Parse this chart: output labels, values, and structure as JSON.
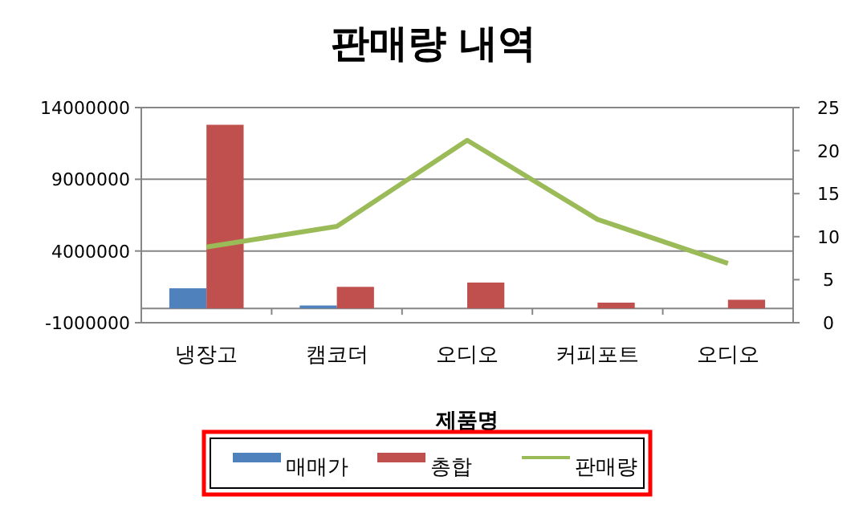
{
  "chart_data": {
    "type": "bar",
    "title": "판매량 내역",
    "xlabel": "제품명",
    "categories": [
      "냉장고",
      "캠코더",
      "오디오",
      "커피포트",
      "오디오"
    ],
    "series": [
      {
        "name": "매매가",
        "color": "#4f81bd",
        "values": [
          1400000,
          200000,
          0,
          0,
          0
        ]
      },
      {
        "name": "총합",
        "color": "#c0504d",
        "values": [
          12800000,
          1500000,
          1800000,
          400000,
          600000
        ]
      },
      {
        "name": "판매량",
        "color": "#9bbb59",
        "type": "line",
        "axis": "y2",
        "values": [
          8.8,
          11.2,
          21.2,
          12,
          6.9
        ]
      }
    ],
    "ylim": [
      -1000000,
      14000000
    ],
    "yticks": [
      -1000000,
      4000000,
      9000000,
      14000000
    ],
    "y2lim": [
      0,
      25
    ],
    "y2ticks": [
      0,
      5,
      10,
      15,
      20,
      25
    ],
    "grid": "y",
    "legend": "bottom",
    "line_style": "solid"
  }
}
